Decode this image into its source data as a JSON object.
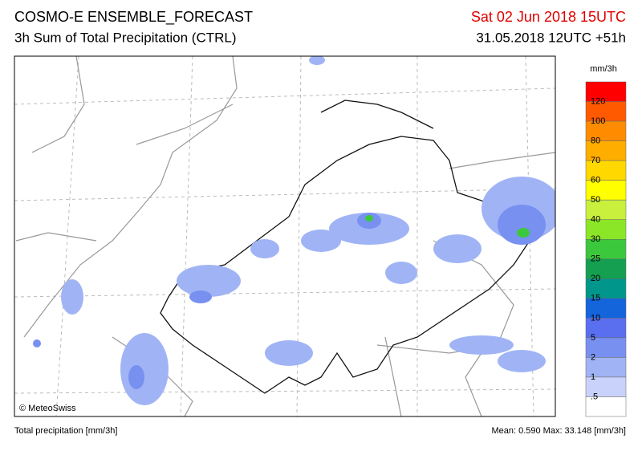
{
  "header": {
    "title": "COSMO-E ENSEMBLE_FORECAST",
    "subtitle": "3h Sum of Total Precipitation (CTRL)",
    "valid_time": "Sat 02 Jun 2018 15UTC",
    "run_time": "31.05.2018 12UTC +51h"
  },
  "map": {
    "credit": "© MeteoSwiss"
  },
  "legend": {
    "unit": "mm/3h",
    "labels": [
      "120",
      "100",
      "80",
      "70",
      "60",
      "50",
      "40",
      "30",
      "25",
      "20",
      "15",
      "10",
      "5",
      "2",
      "1",
      ".5"
    ],
    "colors": [
      "#ff0000",
      "#ff5a00",
      "#ff8c00",
      "#ffae00",
      "#ffd800",
      "#ffff00",
      "#c8f03c",
      "#8ce628",
      "#3cc83c",
      "#14a050",
      "#00968c",
      "#1464dc",
      "#5a6ef0",
      "#7890f0",
      "#a0b4f5",
      "#c8d2fa",
      "#ffffff"
    ]
  },
  "footer": {
    "left": "Total precipitation [mm/3h]",
    "stats": "Mean:  0.590 Max: 33.148 [mm/3h]"
  }
}
